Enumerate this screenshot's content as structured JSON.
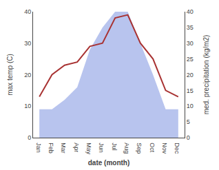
{
  "chart_data": {
    "type": "line",
    "categories": [
      "Jan",
      "Feb",
      "Mar",
      "Apr",
      "May",
      "Jun",
      "Jul",
      "Aug",
      "Sep",
      "Oct",
      "Nov",
      "Dec"
    ],
    "xlabel": "date (month)",
    "ylabel": "max temp (C)",
    "y2label": "med. precipitation (kg/m2)",
    "ylim": [
      0,
      40
    ],
    "yticks": [
      0,
      10,
      20,
      30,
      40
    ],
    "y2lim": [
      0,
      40
    ],
    "y2ticks": [
      0,
      5,
      10,
      15,
      20,
      25,
      30,
      35,
      40
    ],
    "grid": false,
    "series": [
      {
        "type": "area",
        "axis": "y2",
        "color": "#b8c4ee",
        "values": [
          9,
          9,
          12,
          16,
          28,
          35,
          40,
          40,
          30,
          20,
          9,
          9
        ]
      },
      {
        "type": "line",
        "color": "#a83232",
        "values": [
          13,
          20,
          23,
          24,
          29,
          30,
          38,
          39,
          30,
          25,
          15,
          13
        ]
      }
    ]
  }
}
